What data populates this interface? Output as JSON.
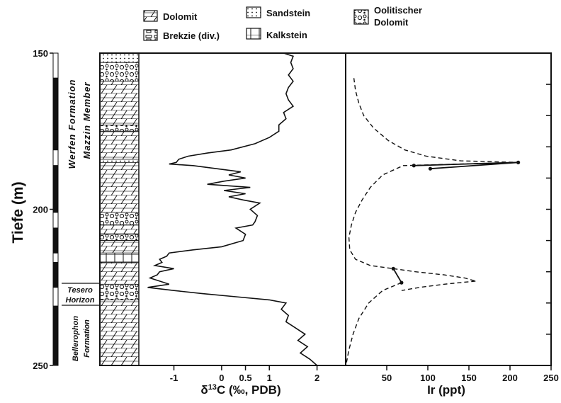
{
  "legend": {
    "dolomit": "Dolomit",
    "brekzie": "Brekzie (div.)",
    "sandstein": "Sandstein",
    "kalkstein": "Kalkstein",
    "oolith_line1": "Oolitischer",
    "oolith_line2": "Dolomit"
  },
  "axes": {
    "depth_title": "Tiefe (m)",
    "d13c_title_pre": "δ",
    "d13c_title_sup": "13",
    "d13c_title_post": "C (‰, PDB)",
    "ir_title": "Ir (ppt)",
    "depth_ticks": [
      "150",
      "200",
      "250"
    ],
    "d13c_ticks": [
      "-1",
      "0",
      "0.5",
      "1",
      "2"
    ],
    "ir_ticks": [
      "50",
      "100",
      "150",
      "200",
      "250"
    ]
  },
  "formations": {
    "werfen": "Werfen Formation",
    "mazzin": "Mazzin Member",
    "tesero_1": "Tesero",
    "tesero_2": "Horizon",
    "bellerophon_1": "Bellerophon",
    "bellerophon_2": "Formation"
  },
  "colors": {
    "ink": "#111111",
    "background": "#ffffff"
  },
  "chart_data": [
    {
      "type": "line",
      "ylabel": "Tiefe (m)",
      "xlim": [
        -1.75,
        2.6
      ],
      "ylim": [
        250,
        150
      ],
      "x_ticks": [
        -1,
        0,
        0.5,
        1,
        2
      ],
      "y_ticks": [
        150,
        200,
        250
      ],
      "series": [
        {
          "depth": [
            150,
            151,
            153,
            155,
            157,
            159,
            161,
            163,
            165,
            167,
            169,
            171,
            173,
            175,
            177,
            179,
            181,
            182,
            183,
            184,
            185,
            185.5,
            186,
            187,
            188,
            189,
            190,
            191,
            192,
            193,
            194,
            195,
            196,
            197,
            198,
            200,
            202,
            204,
            205,
            206,
            208,
            210,
            212,
            213,
            214,
            215,
            216,
            217,
            218,
            219,
            220,
            221,
            222,
            223,
            224,
            225,
            226,
            227,
            228,
            229,
            230,
            232,
            234,
            236,
            238,
            240,
            242,
            244,
            246,
            248,
            250
          ],
          "d13c": [
            1.3,
            1.5,
            1.45,
            1.5,
            1.4,
            1.5,
            1.4,
            1.35,
            1.4,
            1.5,
            1.3,
            1.35,
            1.2,
            1.2,
            1.0,
            0.7,
            0.2,
            -0.3,
            -0.7,
            -0.9,
            -0.95,
            -1.1,
            -0.6,
            -0.1,
            0.4,
            0.15,
            0.5,
            0.05,
            -0.3,
            0.6,
            0.05,
            0.5,
            0.15,
            0.45,
            0.8,
            0.6,
            0.75,
            0.7,
            0.65,
            0.3,
            0.5,
            0.45,
            0.0,
            -0.6,
            -1.1,
            -1.15,
            -1.3,
            -1.25,
            -1.4,
            -1.0,
            -1.3,
            -1.35,
            -1.5,
            -1.3,
            -1.1,
            -1.55,
            -1.0,
            -0.4,
            0.3,
            1.0,
            1.35,
            1.25,
            1.4,
            1.35,
            1.55,
            1.75,
            1.6,
            1.8,
            1.65,
            1.85,
            2.0
          ]
        }
      ]
    },
    {
      "type": "line",
      "xlabel": "Ir (ppt)",
      "xlim": [
        0,
        250
      ],
      "ylim": [
        250,
        150
      ],
      "x_ticks": [
        50,
        100,
        150,
        200,
        250
      ],
      "series": [
        {
          "style": "solid",
          "depth": [
            186.0,
            185.0,
            187.0
          ],
          "ir": [
            83,
            210,
            103
          ],
          "points": true
        },
        {
          "style": "solid",
          "depth": [
            219.0,
            223.5
          ],
          "ir": [
            58,
            68
          ],
          "points": true
        },
        {
          "style": "dashed",
          "depth": [
            158,
            162,
            166,
            170,
            174,
            178,
            181,
            183,
            184.5,
            185,
            186,
            189,
            193,
            197,
            201,
            205,
            209,
            213,
            216,
            218,
            219
          ],
          "ir": [
            10,
            12,
            16,
            22,
            34,
            52,
            72,
            98,
            140,
            210,
            70,
            45,
            30,
            20,
            12,
            7,
            4,
            5,
            12,
            30,
            58
          ]
        },
        {
          "style": "dashed",
          "depth": [
            219,
            220,
            221,
            222,
            223
          ],
          "ir": [
            58,
            85,
            120,
            145,
            158
          ]
        },
        {
          "style": "dashed",
          "depth": [
            223,
            224,
            225,
            226
          ],
          "ir": [
            158,
            120,
            90,
            68
          ]
        },
        {
          "style": "dashed",
          "depth": [
            223.5,
            226,
            230,
            235,
            240,
            245,
            249
          ],
          "ir": [
            68,
            45,
            28,
            16,
            9,
            4,
            1
          ]
        }
      ]
    }
  ]
}
